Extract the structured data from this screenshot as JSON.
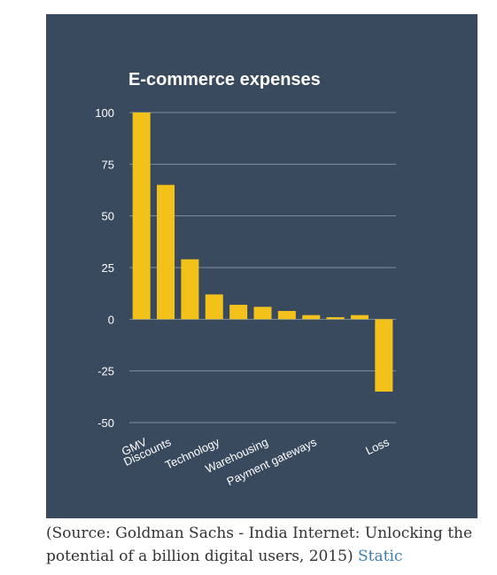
{
  "colors": {
    "panel_bg": "#394a5e",
    "bar": "#f2c21b",
    "grid": "#7f8ea0",
    "text": "#ffffff",
    "caption_text": "#333333",
    "link": "#3f7fae"
  },
  "chart_data": {
    "type": "bar",
    "title": "E-commerce expenses",
    "xlabel": "",
    "ylabel": "",
    "ylim": [
      -50,
      100
    ],
    "yticks": [
      100,
      75,
      50,
      25,
      0,
      -25,
      -50
    ],
    "grid": true,
    "categories": [
      "GMV",
      "Discounts",
      "",
      "Technology",
      "",
      "Warehousing",
      "",
      "Payment gateways",
      "",
      "",
      "Loss"
    ],
    "values": [
      100,
      65,
      29,
      12,
      7,
      6,
      4,
      2,
      1,
      2,
      -35
    ]
  },
  "caption": {
    "text": "(Source: Goldman Sachs - India Internet: Unlocking the potential of a billion digital users, 2015)",
    "link_text": "Static"
  }
}
